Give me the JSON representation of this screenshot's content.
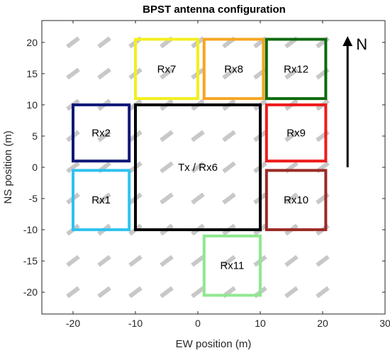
{
  "chart_data": {
    "type": "scatter",
    "title": "BPST antenna configuration",
    "xlabel": "EW position (m)",
    "ylabel": "NS position (m)",
    "xlim": [
      -25,
      30
    ],
    "ylim": [
      -23.5,
      23.5
    ],
    "xticks": [
      -20,
      -10,
      0,
      10,
      20,
      30
    ],
    "yticks": [
      -20,
      -15,
      -10,
      -5,
      0,
      5,
      10,
      15,
      20
    ],
    "grid": false,
    "background_markers": {
      "description": "grey diagonal dipole elements on a regular grid",
      "x": [
        -20,
        -15,
        -10,
        -5,
        0,
        5,
        10,
        15,
        20
      ],
      "y": [
        -20,
        -15,
        -10,
        -5,
        0,
        5,
        10,
        15,
        20
      ],
      "color": "#c8c8c8"
    },
    "boxes": [
      {
        "label": "Rx7",
        "x": [
          -10,
          0
        ],
        "y": [
          11,
          20.5
        ],
        "color": "#f2ef1f"
      },
      {
        "label": "Rx8",
        "x": [
          1,
          10.5
        ],
        "y": [
          11,
          20.5
        ],
        "color": "#f5a623"
      },
      {
        "label": "Rx12",
        "x": [
          11,
          20.5
        ],
        "y": [
          11,
          20.5
        ],
        "color": "#0b6a0b"
      },
      {
        "label": "Rx2",
        "x": [
          -20,
          -11
        ],
        "y": [
          1,
          10
        ],
        "color": "#101878"
      },
      {
        "label": "Tx / Rx6",
        "x": [
          -10,
          10
        ],
        "y": [
          -10,
          10
        ],
        "color": "#000000"
      },
      {
        "label": "Rx9",
        "x": [
          11,
          20.5
        ],
        "y": [
          1,
          10
        ],
        "color": "#ec1c1c"
      },
      {
        "label": "Rx1",
        "x": [
          -20,
          -11
        ],
        "y": [
          -10,
          -0.5
        ],
        "color": "#2ec2ef"
      },
      {
        "label": "Rx10",
        "x": [
          11,
          20.5
        ],
        "y": [
          -10,
          -0.5
        ],
        "color": "#9b2a26"
      },
      {
        "label": "Rx11",
        "x": [
          1,
          10
        ],
        "y": [
          -20.5,
          -11
        ],
        "color": "#8fe88f"
      }
    ],
    "north_arrow": {
      "label": "N",
      "x": 24,
      "y_from": 0,
      "y_to": 21,
      "color": "#000000"
    }
  }
}
